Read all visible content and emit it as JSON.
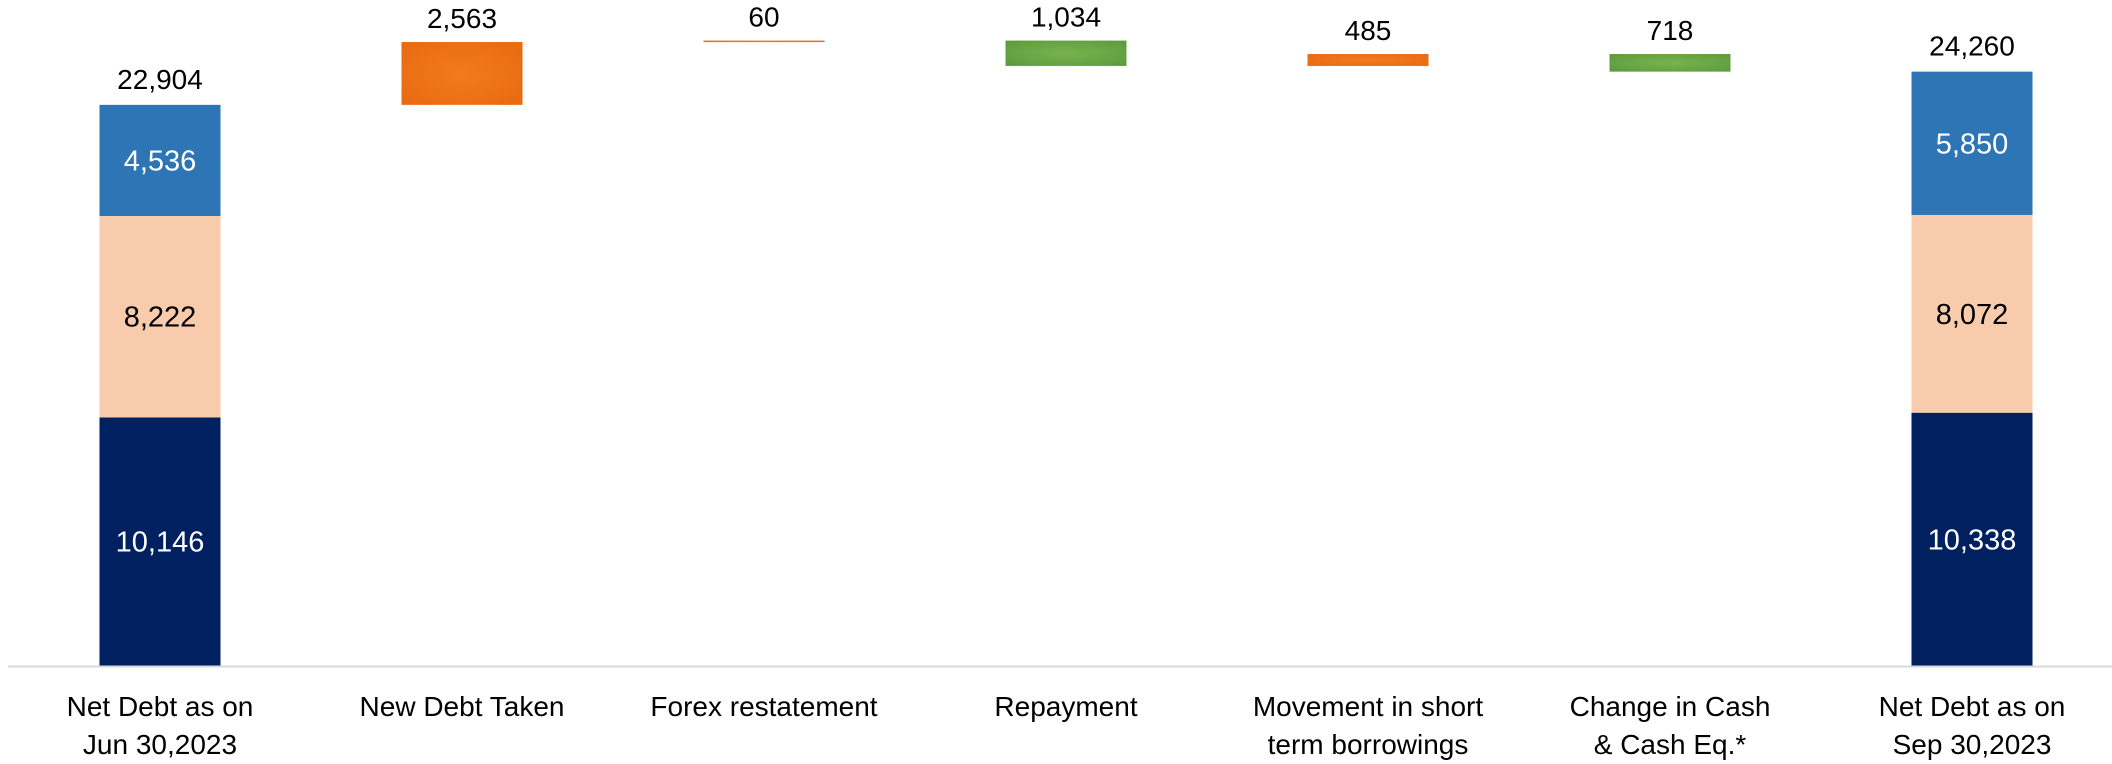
{
  "chart_data": {
    "type": "bar",
    "subtype": "waterfall",
    "title": "",
    "xlabel": "",
    "ylabel": "",
    "ylim": [
      0,
      25000
    ],
    "grid": false,
    "legend": "none",
    "categories": [
      [
        "Net Debt as on",
        "Jun 30,2023"
      ],
      [
        "New Debt Taken"
      ],
      [
        "Forex restatement"
      ],
      [
        "Repayment"
      ],
      [
        "Movement in short",
        "term borrowings"
      ],
      [
        "Change in Cash",
        "& Cash Eq.*"
      ],
      [
        "Net Debt as on",
        "Sep 30,2023"
      ]
    ],
    "stacks": [
      {
        "index": 0,
        "total": 22904,
        "total_label": "22,904",
        "segments": [
          {
            "value": 10146,
            "label": "10,146",
            "color": "#002060",
            "text_color": "#ffffff"
          },
          {
            "value": 8222,
            "label": "8,222",
            "color": "#f8cbad",
            "text_color": "#000000"
          },
          {
            "value": 4536,
            "label": "4,536",
            "color": "#2e75b6",
            "text_color": "#ffffff"
          }
        ]
      },
      {
        "index": 6,
        "total": 24260,
        "total_label": "24,260",
        "segments": [
          {
            "value": 10338,
            "label": "10,338",
            "color": "#002060",
            "text_color": "#ffffff"
          },
          {
            "value": 8072,
            "label": "8,072",
            "color": "#f8cbad",
            "text_color": "#000000"
          },
          {
            "value": 5850,
            "label": "5,850",
            "color": "#2e75b6",
            "text_color": "#ffffff"
          }
        ]
      }
    ],
    "steps": [
      {
        "index": 1,
        "value": 2563,
        "label": "2,563",
        "direction": "increase"
      },
      {
        "index": 2,
        "value": 60,
        "label": "60",
        "direction": "increase"
      },
      {
        "index": 3,
        "value": 1034,
        "label": "1,034",
        "direction": "decrease"
      },
      {
        "index": 4,
        "value": 485,
        "label": "485",
        "direction": "increase"
      },
      {
        "index": 5,
        "value": 718,
        "label": "718",
        "direction": "decrease"
      }
    ],
    "colors": {
      "increase": "#e8690f",
      "increase_light": "#f47b20",
      "decrease": "#5a9a3c",
      "decrease_light": "#79b34f",
      "axis": "#d9d9d9"
    }
  }
}
